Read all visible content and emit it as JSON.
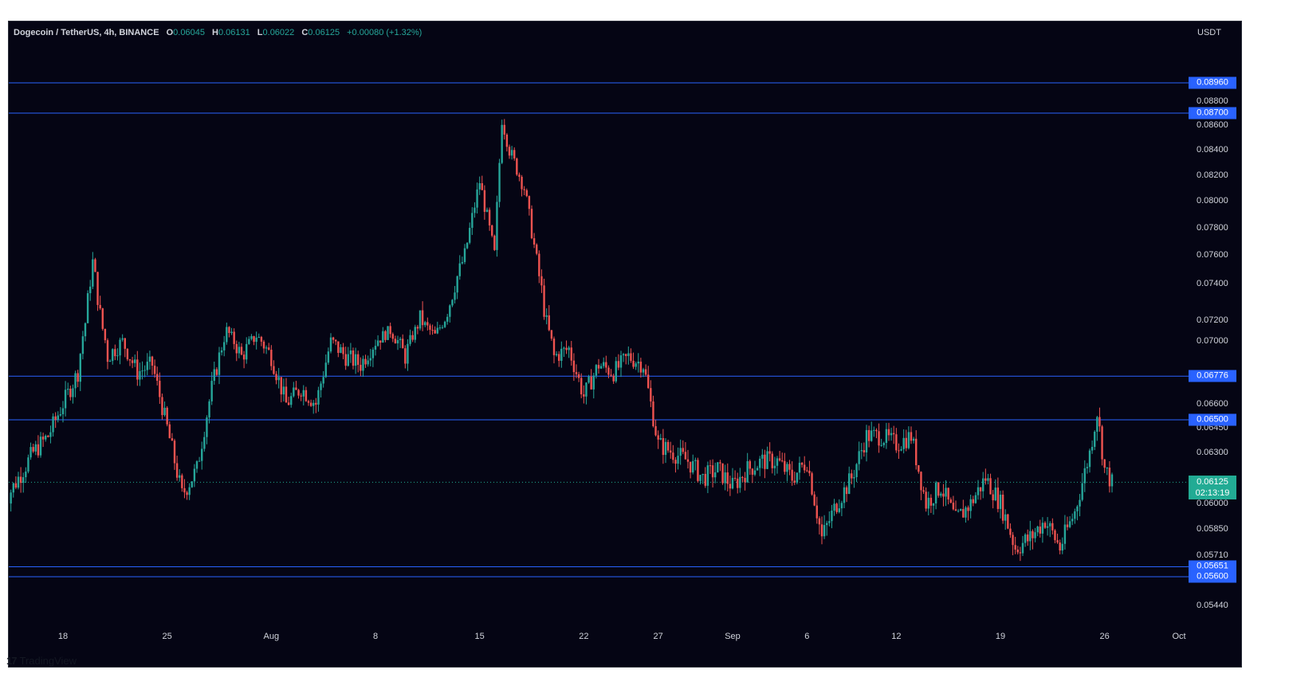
{
  "legend": {
    "symbol": "Dogecoin / TetherUS, 4h, BINANCE",
    "o_label": "O",
    "o_value": "0.06045",
    "h_label": "H",
    "h_value": "0.06131",
    "l_label": "L",
    "l_value": "0.06022",
    "c_label": "C",
    "c_value": "0.06125",
    "change": "+0.00080 (+1.32%)"
  },
  "price_axis": {
    "unit": "USDT",
    "ticks": [
      "0.08800",
      "0.08600",
      "0.08400",
      "0.08200",
      "0.08000",
      "0.07800",
      "0.07600",
      "0.07400",
      "0.07200",
      "0.07000",
      "0.06600",
      "0.06450",
      "0.06300",
      "0.06000",
      "0.05850",
      "0.05710",
      "0.05440"
    ]
  },
  "time_axis": {
    "labels": [
      "18",
      "25",
      "Aug",
      "8",
      "15",
      "22",
      "27",
      "Sep",
      "6",
      "12",
      "19",
      "26",
      "Oct"
    ]
  },
  "levels": [
    {
      "value": "0.08960",
      "color": "#2962ff"
    },
    {
      "value": "0.08700",
      "color": "#2962ff"
    },
    {
      "value": "0.06776",
      "color": "#2962ff"
    },
    {
      "value": "0.06500",
      "color": "#2962ff"
    },
    {
      "value": "0.05651",
      "color": "#2962ff"
    },
    {
      "value": "0.05600",
      "color": "#2962ff"
    }
  ],
  "current_price": {
    "value": "0.06125",
    "countdown": "02:13:19",
    "color": "#22ab94"
  },
  "colors": {
    "up": "#26a69a",
    "down": "#ef5350",
    "background": "#050514",
    "level": "#2962ff"
  },
  "footer": {
    "brand": "TradingView",
    "logo_icon": "tradingview-logo-icon"
  },
  "chart_data": {
    "type": "candlestick",
    "title": "Dogecoin / TetherUS, 4h, BINANCE",
    "x_range": [
      "Jul 14",
      "Oct 1"
    ],
    "ylim": [
      0.0533,
      0.0925
    ],
    "y_unit": "USDT",
    "key_points": [
      {
        "date": "Jul 14",
        "price": 0.06
      },
      {
        "date": "Jul 16",
        "price": 0.063
      },
      {
        "date": "Jul 17",
        "price": 0.064
      },
      {
        "date": "Jul 19",
        "price": 0.068
      },
      {
        "date": "Jul 20",
        "price": 0.0755
      },
      {
        "date": "Jul 21",
        "price": 0.069
      },
      {
        "date": "Jul 22",
        "price": 0.07
      },
      {
        "date": "Jul 23",
        "price": 0.068
      },
      {
        "date": "Jul 24",
        "price": 0.0685
      },
      {
        "date": "Jul 25",
        "price": 0.0645
      },
      {
        "date": "Jul 26",
        "price": 0.0605
      },
      {
        "date": "Jul 27",
        "price": 0.062
      },
      {
        "date": "Jul 28",
        "price": 0.067
      },
      {
        "date": "Jul 29",
        "price": 0.071
      },
      {
        "date": "Jul 30",
        "price": 0.069
      },
      {
        "date": "Jul 31",
        "price": 0.0705
      },
      {
        "date": "Aug 1",
        "price": 0.069
      },
      {
        "date": "Aug 2",
        "price": 0.066
      },
      {
        "date": "Aug 3",
        "price": 0.067
      },
      {
        "date": "Aug 4",
        "price": 0.066
      },
      {
        "date": "Aug 5",
        "price": 0.07
      },
      {
        "date": "Aug 6",
        "price": 0.069
      },
      {
        "date": "Aug 7",
        "price": 0.0685
      },
      {
        "date": "Aug 8",
        "price": 0.07
      },
      {
        "date": "Aug 9",
        "price": 0.071
      },
      {
        "date": "Aug 10",
        "price": 0.069
      },
      {
        "date": "Aug 11",
        "price": 0.072
      },
      {
        "date": "Aug 12",
        "price": 0.0705
      },
      {
        "date": "Aug 13",
        "price": 0.073
      },
      {
        "date": "Aug 14",
        "price": 0.076
      },
      {
        "date": "Aug 15",
        "price": 0.0815
      },
      {
        "date": "Aug 16",
        "price": 0.076
      },
      {
        "date": "Aug 16 12:00",
        "price": 0.0865
      },
      {
        "date": "Aug 17",
        "price": 0.084
      },
      {
        "date": "Aug 18",
        "price": 0.081
      },
      {
        "date": "Aug 19",
        "price": 0.0745
      },
      {
        "date": "Aug 20",
        "price": 0.069
      },
      {
        "date": "Aug 21",
        "price": 0.0695
      },
      {
        "date": "Aug 22",
        "price": 0.0665
      },
      {
        "date": "Aug 23",
        "price": 0.0685
      },
      {
        "date": "Aug 24",
        "price": 0.068
      },
      {
        "date": "Aug 25",
        "price": 0.069
      },
      {
        "date": "Aug 26",
        "price": 0.0685
      },
      {
        "date": "Aug 27",
        "price": 0.0635
      },
      {
        "date": "Aug 28",
        "price": 0.063
      },
      {
        "date": "Aug 29",
        "price": 0.0625
      },
      {
        "date": "Aug 30",
        "price": 0.0615
      },
      {
        "date": "Aug 31",
        "price": 0.062
      },
      {
        "date": "Sep 1",
        "price": 0.061
      },
      {
        "date": "Sep 2",
        "price": 0.062
      },
      {
        "date": "Sep 3",
        "price": 0.0625
      },
      {
        "date": "Sep 4",
        "price": 0.0625
      },
      {
        "date": "Sep 5",
        "price": 0.0615
      },
      {
        "date": "Sep 6",
        "price": 0.0625
      },
      {
        "date": "Sep 7",
        "price": 0.058
      },
      {
        "date": "Sep 8",
        "price": 0.06
      },
      {
        "date": "Sep 9",
        "price": 0.0615
      },
      {
        "date": "Sep 10",
        "price": 0.064
      },
      {
        "date": "Sep 11",
        "price": 0.064
      },
      {
        "date": "Sep 12",
        "price": 0.0635
      },
      {
        "date": "Sep 13",
        "price": 0.064
      },
      {
        "date": "Sep 14",
        "price": 0.06
      },
      {
        "date": "Sep 15",
        "price": 0.061
      },
      {
        "date": "Sep 16",
        "price": 0.059
      },
      {
        "date": "Sep 17",
        "price": 0.06
      },
      {
        "date": "Sep 18",
        "price": 0.0615
      },
      {
        "date": "Sep 19",
        "price": 0.06
      },
      {
        "date": "Sep 20",
        "price": 0.0575
      },
      {
        "date": "Sep 21",
        "price": 0.058
      },
      {
        "date": "Sep 22",
        "price": 0.059
      },
      {
        "date": "Sep 23",
        "price": 0.0575
      },
      {
        "date": "Sep 24",
        "price": 0.0595
      },
      {
        "date": "Sep 25",
        "price": 0.063
      },
      {
        "date": "Sep 25 12:00",
        "price": 0.0655
      },
      {
        "date": "Sep 26",
        "price": 0.062
      },
      {
        "date": "Sep 26 12:00",
        "price": 0.0612
      }
    ]
  }
}
